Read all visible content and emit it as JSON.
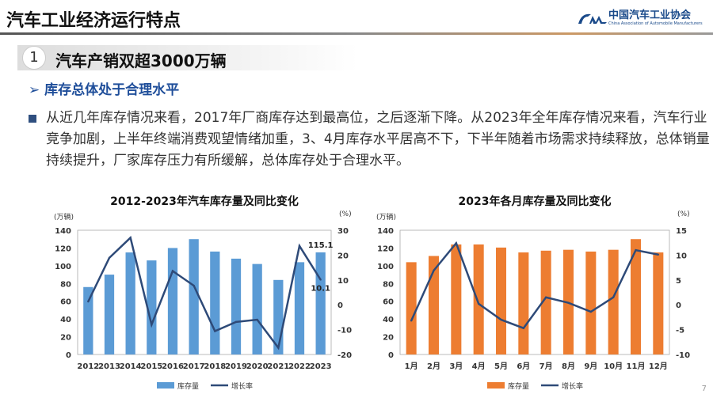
{
  "header": {
    "title": "汽车工业经济运行特点",
    "logo_cn": "中国汽车工业协会",
    "logo_en": "China Association of Automobile Manufacturers"
  },
  "section": {
    "number": "1",
    "title": "汽车产销双超3000万辆"
  },
  "subheading": "➢ 库存总体处于合理水平",
  "paragraph": "从近几年库存情况来看，2017年厂商库存达到最高位，之后逐渐下降。从2023年全年库存情况来看，汽车行业竞争加剧，上半年终端消费观望情绪加重，3、4月库存水平居高不下，下半年随着市场需求持续释放，总体销量持续提升，厂家库存压力有所缓解，总体库存处于合理水平。",
  "page_number": "7",
  "colors": {
    "left_bar": "#5b9bd5",
    "right_bar": "#ed7d31",
    "line": "#2e4a78",
    "subheading": "#1f4e9a"
  },
  "chart_data": [
    {
      "type": "bar+line",
      "title": "2012-2023年汽车库存量及同比变化",
      "ylabel_left": "(万辆)",
      "ylabel_right": "(%)",
      "categories": [
        "2012",
        "2013",
        "2014",
        "2015",
        "2016",
        "2017",
        "2018",
        "2019",
        "2020",
        "2021",
        "2022",
        "2023"
      ],
      "ylim_left": [
        0,
        140
      ],
      "yticks_left": [
        "0",
        "20",
        "40",
        "60",
        "80",
        "100",
        "120",
        "140"
      ],
      "ylim_right": [
        -20,
        30
      ],
      "yticks_right": [
        "-20",
        "-10",
        "0",
        "10",
        "20",
        "30"
      ],
      "series": [
        {
          "name": "库存量",
          "type": "bar",
          "axis": "left",
          "values": [
            76,
            90,
            115,
            106,
            120,
            130,
            116,
            108,
            102,
            84,
            104,
            115.1
          ]
        },
        {
          "name": "增长率",
          "type": "line",
          "axis": "right",
          "values": [
            1.3,
            18.9,
            27,
            -8,
            13.6,
            7.7,
            -10.6,
            -6.9,
            -6,
            -17.3,
            23.7,
            10.1
          ]
        }
      ],
      "data_labels": [
        "115.1",
        "10.1"
      ],
      "legend": "bottom"
    },
    {
      "type": "bar+line",
      "title": "2023年各月库存量及同比变化",
      "ylabel_left": "(万辆)",
      "ylabel_right": "(%)",
      "categories": [
        "1月",
        "2月",
        "3月",
        "4月",
        "5月",
        "6月",
        "7月",
        "8月",
        "9月",
        "10月",
        "11月",
        "12月"
      ],
      "ylim_left": [
        0,
        140
      ],
      "yticks_left": [
        "0",
        "20",
        "40",
        "60",
        "80",
        "100",
        "120",
        "140"
      ],
      "ylim_right": [
        -10,
        15
      ],
      "yticks_right": [
        "-10",
        "-5",
        "0",
        "5",
        "10",
        "15"
      ],
      "series": [
        {
          "name": "库存量",
          "type": "bar",
          "axis": "left",
          "values": [
            104,
            111,
            124,
            124,
            120.5,
            115,
            117,
            118,
            116,
            118,
            130,
            115
          ]
        },
        {
          "name": "增长率",
          "type": "line",
          "axis": "right",
          "values": [
            -3.2,
            6.9,
            12.4,
            0.2,
            -3,
            -4.7,
            1.5,
            0.4,
            -1.4,
            1.5,
            11,
            10.1
          ]
        }
      ],
      "legend": "bottom"
    }
  ]
}
